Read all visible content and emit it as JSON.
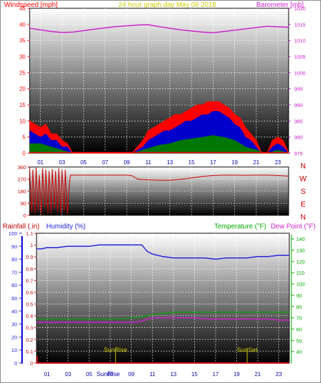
{
  "header": {
    "wind_title": "Windspeed [mph]",
    "graph_title": "24 hour graph day   May 06 2018",
    "baro_title": "Barometer [mb]",
    "rain_title": "Rainfall (.in)",
    "humidity_title": "Humidity (%)",
    "temp_title": "Temperature (°F)",
    "dew_title": "Dew Point (°F)"
  },
  "colors": {
    "windspeed": "#ff0000",
    "gust_blue": "#0000cc",
    "gust_green": "#007700",
    "barometer": "#cc22cc",
    "direction": "#cc0000",
    "humidity": "#2222dd",
    "temperature": "#00aa00",
    "dewpoint": "#cc22cc",
    "rain": "#cc0000",
    "sun": "#cccc00"
  },
  "compass": [
    "N",
    "W",
    "S",
    "E",
    "N"
  ],
  "hour_ticks": [
    "01",
    "03",
    "05",
    "07",
    "09",
    "11",
    "13",
    "15",
    "17",
    "19",
    "21",
    "23"
  ],
  "sun_markers": [
    {
      "label": "SunRise",
      "hour": 7.5
    },
    {
      "label": "SunSet",
      "hour": 20.0
    }
  ],
  "sun_axis_text": "SunRise",
  "chart_data": [
    {
      "type": "line",
      "name": "wind-baro",
      "x_unit": "hour",
      "xlim": [
        0,
        24
      ],
      "left_axis": {
        "label": "Windspeed [mph]",
        "ylim": [
          0,
          45
        ],
        "ticks": [
          0,
          5,
          10,
          15,
          20,
          25,
          30,
          35,
          40,
          45
        ]
      },
      "right_axis": {
        "label": "Barometer [mb]",
        "ylim": [
          975,
          1020
        ],
        "ticks": [
          975,
          980,
          985,
          990,
          995,
          1000,
          1005,
          1010,
          1015,
          1020
        ]
      },
      "series": [
        {
          "name": "Barometer [mb]",
          "axis": "right",
          "x": [
            0,
            2,
            3,
            4,
            6,
            8,
            10,
            11,
            12,
            14,
            16,
            17,
            18,
            20,
            22,
            24
          ],
          "y": [
            1013.8,
            1012.8,
            1012.5,
            1012.6,
            1013.5,
            1014.3,
            1014.8,
            1014.9,
            1014.3,
            1013.3,
            1012.6,
            1012.4,
            1012.8,
            1013.6,
            1014.4,
            1014.1
          ]
        },
        {
          "name": "Windspeed [mph]",
          "axis": "left",
          "x": [
            0,
            0.5,
            1,
            1.5,
            2,
            2.5,
            3,
            3.5,
            4,
            5,
            6,
            7,
            8,
            9,
            9.5,
            10,
            10.5,
            11,
            11.5,
            12,
            12.5,
            13,
            13.5,
            14,
            14.5,
            15,
            15.5,
            16,
            16.5,
            17,
            17.5,
            18,
            18.5,
            19,
            19.5,
            20,
            20.5,
            21,
            21.5,
            22,
            22.5,
            23,
            23.5,
            24
          ],
          "y": [
            7,
            6,
            5,
            6,
            4,
            4,
            2,
            2,
            0,
            0,
            0,
            0,
            0,
            0,
            0,
            1,
            2,
            4,
            5,
            6,
            7,
            7,
            8,
            9,
            10,
            10,
            11,
            12,
            12,
            13,
            13,
            12,
            11,
            9,
            8,
            5,
            4,
            2,
            0,
            0,
            2,
            3,
            2,
            0
          ]
        },
        {
          "name": "Gust",
          "axis": "left",
          "x": [
            0,
            0.5,
            1,
            1.5,
            2,
            2.5,
            3,
            3.5,
            4,
            5,
            6,
            7,
            8,
            9,
            9.5,
            10,
            10.5,
            11,
            11.5,
            12,
            12.5,
            13,
            13.5,
            14,
            14.5,
            15,
            15.5,
            16,
            16.5,
            17,
            17.5,
            18,
            18.5,
            19,
            19.5,
            20,
            20.5,
            21,
            21.5,
            22,
            22.5,
            23,
            23.5,
            24
          ],
          "y": [
            10,
            9,
            8,
            9,
            6,
            6,
            4,
            3,
            0,
            0,
            0,
            0,
            0,
            0,
            0,
            2,
            4,
            7,
            8,
            9,
            10,
            11,
            12,
            12,
            13,
            14,
            15,
            15,
            16,
            16,
            16,
            15,
            14,
            12,
            11,
            8,
            6,
            4,
            0,
            0,
            4,
            5,
            4,
            0
          ]
        },
        {
          "name": "Average",
          "axis": "left",
          "x": [
            0,
            1,
            2,
            3,
            4,
            9,
            10,
            11,
            12,
            13,
            14,
            15,
            16,
            17,
            18,
            19,
            20,
            21,
            22,
            23,
            24
          ],
          "y": [
            3,
            3,
            2,
            1,
            0,
            0,
            0.5,
            1.5,
            2.5,
            3,
            4,
            4.5,
            5,
            5.5,
            5,
            4,
            2,
            1,
            0,
            1,
            0
          ]
        }
      ]
    },
    {
      "type": "line",
      "name": "wind-direction",
      "x_unit": "hour",
      "xlim": [
        0,
        24
      ],
      "ylim": [
        0,
        360
      ],
      "y_ticks": [
        0,
        90,
        180,
        270,
        360
      ],
      "series": [
        {
          "name": "Direction",
          "x": [
            0,
            0.2,
            0.3,
            0.5,
            0.6,
            0.8,
            0.9,
            1.1,
            1.2,
            1.4,
            1.5,
            1.7,
            1.8,
            2.0,
            2.1,
            2.3,
            2.4,
            2.6,
            2.7,
            2.9,
            3.0,
            3.2,
            3.3,
            3.5,
            3.7,
            3.8,
            4,
            5,
            6,
            7,
            8,
            9,
            9.5,
            10,
            11,
            12,
            13,
            14,
            15,
            16,
            17,
            18,
            19,
            20,
            21,
            22,
            23,
            24
          ],
          "y": [
            350,
            20,
            340,
            10,
            355,
            30,
            300,
            5,
            350,
            60,
            340,
            10,
            330,
            15,
            345,
            50,
            330,
            20,
            350,
            10,
            340,
            30,
            340,
            5,
            250,
            300,
            300,
            300,
            300,
            300,
            300,
            300,
            295,
            270,
            265,
            262,
            262,
            268,
            278,
            290,
            296,
            300,
            300,
            298,
            300,
            300,
            296,
            292
          ]
        }
      ]
    },
    {
      "type": "line",
      "name": "rain-humidity-temp",
      "x_unit": "hour",
      "xlim": [
        0,
        24
      ],
      "left_axis": {
        "label": "Rainfall (.in)",
        "ylim": [
          0,
          1.1
        ],
        "ticks": [
          0,
          0.1,
          0.2,
          0.3,
          0.4,
          0.5,
          0.6,
          0.7,
          0.8,
          0.9,
          1,
          1.1
        ]
      },
      "humidity_axis": {
        "label": "Humidity (%)",
        "ylim": [
          0,
          100
        ],
        "ticks": [
          0,
          10,
          20,
          30,
          40,
          50,
          60,
          70,
          80,
          90,
          100
        ]
      },
      "right_axis": {
        "label": "Temperature (°F)",
        "ylim": [
          30,
          145
        ],
        "ticks": [
          40,
          50,
          60,
          70,
          80,
          90,
          100,
          110,
          120,
          130,
          140
        ]
      },
      "series": [
        {
          "name": "Humidity (%)",
          "axis": "humidity",
          "x": [
            0,
            0.5,
            1,
            2,
            3,
            4,
            5,
            6,
            7,
            8,
            9,
            9.5,
            10,
            10.2,
            10.5,
            11,
            11.5,
            12,
            13,
            14,
            15,
            16,
            17,
            18,
            19,
            20,
            21,
            22,
            23,
            24
          ],
          "y": [
            88,
            88,
            89,
            89,
            90,
            90,
            90,
            91,
            91,
            91,
            91,
            91,
            91,
            89,
            86,
            84,
            83,
            82,
            81,
            81,
            81,
            81,
            80,
            81,
            81,
            81,
            82,
            82,
            83,
            83
          ]
        },
        {
          "name": "Temperature (°F)",
          "axis": "right",
          "x": [
            0,
            2,
            4,
            6,
            8,
            9,
            10,
            11,
            12,
            13,
            14,
            15,
            16,
            17,
            18,
            19,
            20,
            21,
            22,
            23,
            24
          ],
          "y": [
            69,
            69,
            69,
            69,
            69,
            70,
            71,
            73,
            74,
            75,
            75,
            75,
            75,
            75,
            75,
            75,
            75,
            75,
            75,
            75,
            75
          ]
        },
        {
          "name": "Dew Point (°F)",
          "axis": "right",
          "x": [
            0,
            2,
            4,
            6,
            8,
            9,
            10,
            10.5,
            11,
            12,
            13,
            14,
            15,
            16,
            17,
            18,
            19,
            20,
            21,
            22,
            23,
            24
          ],
          "y": [
            66,
            66,
            66,
            66,
            66,
            66,
            67,
            69,
            70,
            70,
            70,
            70,
            70,
            69,
            69,
            69,
            69,
            69,
            69,
            69,
            68,
            68
          ]
        },
        {
          "name": "Rainfall (.in)",
          "axis": "left",
          "x": [
            0,
            24
          ],
          "y": [
            0,
            0
          ]
        }
      ]
    }
  ]
}
